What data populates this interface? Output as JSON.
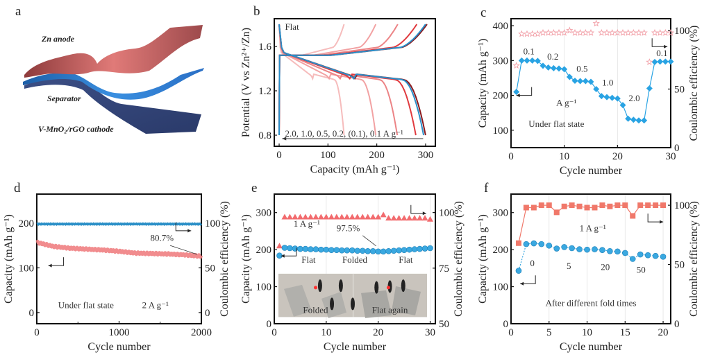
{
  "figure": {
    "panel_letters": [
      "a",
      "b",
      "c",
      "d",
      "e",
      "f"
    ]
  },
  "schematic": {
    "labels": {
      "anode": "Zn anode",
      "separator": "Separator",
      "cathode": "V-MnO₂/rGO cathode"
    },
    "colors": {
      "anode": "#c0282d",
      "separator": "#2aa7de",
      "cathode": "#1f6fb5"
    }
  },
  "chart_data": [
    {
      "panel": "b",
      "type": "line",
      "title": "",
      "annotation": "Flat",
      "rate_label": "2.0, 1.0, 0.5, 0.2, (0.1), 0.1 A g⁻¹",
      "xlabel": "Capacity (mAh g⁻¹)",
      "ylabel": "Potential (V vs Zn²⁺/Zn)",
      "xlim": [
        -10,
        320
      ],
      "ylim": [
        0.7,
        1.85
      ],
      "xticks": [
        0,
        100,
        200,
        300
      ],
      "yticks": [
        0.8,
        1.2,
        1.6
      ],
      "series": [
        {
          "name": "2.0 A g-1",
          "color": "#f6bcbc",
          "discharge_capacity": 133,
          "charge_capacity": 133
        },
        {
          "name": "1.0 A g-1",
          "color": "#f2a2a3",
          "discharge_capacity": 198,
          "charge_capacity": 198
        },
        {
          "name": "0.5 A g-1",
          "color": "#ec8486",
          "discharge_capacity": 242,
          "charge_capacity": 243
        },
        {
          "name": "0.2 A g-1",
          "color": "#e03a3f",
          "discharge_capacity": 280,
          "charge_capacity": 282
        },
        {
          "name": "(0.1) A g-1",
          "color": "#8b1a1e",
          "discharge_capacity": 300,
          "charge_capacity": 303
        },
        {
          "name": "0.1 A g-1",
          "color": "#2b8fc9",
          "discharge_capacity": 296,
          "charge_capacity": 300
        }
      ]
    },
    {
      "panel": "c",
      "type": "line",
      "xlabel": "Cycle number",
      "ylabel": "Capacity (mAh g⁻¹)",
      "y2label": "Coulombic efficiency (%)",
      "xlim": [
        0,
        30
      ],
      "ylim": [
        50,
        420
      ],
      "y2lim": [
        0,
        110
      ],
      "xticks": [
        0,
        10,
        20,
        30
      ],
      "yticks": [
        100,
        200,
        300,
        400
      ],
      "y2ticks": [
        0,
        50,
        100
      ],
      "x": [
        1,
        2,
        3,
        4,
        5,
        6,
        7,
        8,
        9,
        10,
        11,
        12,
        13,
        14,
        15,
        16,
        17,
        18,
        19,
        20,
        21,
        22,
        23,
        24,
        25,
        26,
        27,
        28,
        29,
        30
      ],
      "series": [
        {
          "name": "Capacity",
          "axis": "left",
          "color": "#29a3e3",
          "marker": "diamond",
          "values": [
            210,
            300,
            300,
            300,
            299,
            285,
            280,
            278,
            277,
            275,
            253,
            242,
            241,
            241,
            239,
            218,
            198,
            195,
            193,
            191,
            172,
            133,
            130,
            128,
            128,
            220,
            296,
            297,
            297,
            297
          ]
        },
        {
          "name": "Coulombic efficiency",
          "axis": "right",
          "color": "#f2a0a8",
          "marker": "star",
          "values": [
            70,
            97,
            97,
            97,
            97,
            98,
            98,
            98,
            98,
            98,
            100,
            98,
            98,
            98,
            98,
            106,
            98,
            98,
            98,
            98,
            98,
            98,
            98,
            98,
            98,
            73,
            98,
            98,
            98,
            98
          ]
        }
      ],
      "annotations": [
        "0.1",
        "0.2",
        "0.5",
        "1.0",
        "2.0",
        "0.1",
        "A g⁻¹",
        "Under flat state"
      ]
    },
    {
      "panel": "d",
      "type": "line",
      "xlabel": "Cycle number",
      "ylabel": "Capacity (mAh g⁻¹)",
      "y2label": "Coulombic efficiency (%)",
      "xlim": [
        0,
        2000
      ],
      "ylim": [
        -25,
        265
      ],
      "y2lim": [
        -12.5,
        132.5
      ],
      "xticks": [
        0,
        1000,
        2000
      ],
      "yticks": [
        0,
        100,
        200
      ],
      "y2ticks": [
        0,
        50,
        100
      ],
      "series": [
        {
          "name": "Capacity",
          "axis": "left",
          "color": "#f07f82",
          "x": [
            0,
            200,
            400,
            600,
            800,
            1000,
            1200,
            1400,
            1600,
            1800,
            2000
          ],
          "values": [
            157,
            148,
            144,
            142,
            140,
            137,
            133,
            132,
            131,
            129,
            126
          ]
        },
        {
          "name": "Coulombic efficiency",
          "axis": "right",
          "color": "#2a8fc7",
          "x": [
            0,
            500,
            1000,
            1500,
            2000
          ],
          "values": [
            99,
            99,
            99,
            99,
            99
          ]
        }
      ],
      "annotations": [
        "80.7%",
        "Under flat state",
        "2 A g⁻¹"
      ]
    },
    {
      "panel": "e",
      "type": "scatter",
      "xlabel": "Cycle number",
      "ylabel": "Capacity (mAh g⁻¹)",
      "y2label": "Coulombic efficiency (%)",
      "xlim": [
        0,
        31
      ],
      "ylim": [
        0,
        350
      ],
      "y2lim": [
        50,
        108.3
      ],
      "xticks": [
        0,
        10,
        20,
        30
      ],
      "yticks": [
        0,
        100,
        200,
        300
      ],
      "y2ticks": [
        50,
        75,
        100
      ],
      "x": [
        1,
        2,
        3,
        4,
        5,
        6,
        7,
        8,
        9,
        10,
        11,
        12,
        13,
        14,
        15,
        16,
        17,
        18,
        19,
        20,
        21,
        22,
        23,
        24,
        25,
        26,
        27,
        28,
        29,
        30
      ],
      "series": [
        {
          "name": "Capacity",
          "axis": "left",
          "color": "#3aa8e0",
          "marker": "circle",
          "values": [
            184,
            205,
            204,
            203,
            202,
            202,
            201,
            201,
            200,
            200,
            199,
            199,
            198,
            198,
            198,
            197,
            197,
            196,
            196,
            195,
            195,
            196,
            197,
            198,
            199,
            200,
            201,
            202,
            203,
            204
          ]
        },
        {
          "name": "Coulombic efficiency",
          "axis": "right",
          "color": "#f26b6e",
          "marker": "triangle",
          "values": [
            85,
            98,
            98,
            98,
            98,
            98,
            98,
            98,
            98,
            98,
            98,
            98,
            98,
            98,
            98,
            98,
            98,
            98,
            98,
            98,
            99,
            97.5,
            97.5,
            97.5,
            97.5,
            97.5,
            97.5,
            97.5,
            97.5,
            97
          ]
        }
      ],
      "annotations": [
        "1 A g⁻¹",
        "97.5%",
        "Flat",
        "Folded",
        "Flat"
      ],
      "inset_labels": [
        "Folded",
        "Flat again"
      ]
    },
    {
      "panel": "f",
      "type": "line",
      "xlabel": "Cycle number",
      "ylabel": "Capacity (mAh g⁻¹)",
      "y2label": "Coulombic efficiency (%)",
      "xlim": [
        0,
        21
      ],
      "ylim": [
        0,
        350
      ],
      "y2lim": [
        0,
        109.4
      ],
      "xticks": [
        0,
        5,
        10,
        15,
        20
      ],
      "yticks": [
        0,
        100,
        200,
        300
      ],
      "y2ticks": [
        0,
        50,
        100
      ],
      "x": [
        1,
        2,
        3,
        4,
        5,
        6,
        7,
        8,
        9,
        10,
        11,
        12,
        13,
        14,
        15,
        16,
        17,
        18,
        19,
        20
      ],
      "series": [
        {
          "name": "Capacity",
          "axis": "left",
          "color": "#3aa8e0",
          "marker": "circle",
          "values": [
            143,
            215,
            217,
            215,
            211,
            203,
            207,
            204,
            201,
            200,
            201,
            199,
            196,
            195,
            191,
            175,
            187,
            185,
            183,
            181
          ]
        },
        {
          "name": "Coulombic efficiency",
          "axis": "right",
          "color": "#f0786a",
          "marker": "square",
          "values": [
            68,
            98,
            98,
            100,
            100,
            94,
            99,
            100,
            99,
            98,
            98,
            100,
            99,
            100,
            100,
            91,
            100,
            100,
            100,
            100
          ]
        }
      ],
      "annotations": [
        "1 A g⁻¹",
        "0",
        "5",
        "20",
        "50",
        "After different fold times"
      ]
    }
  ]
}
